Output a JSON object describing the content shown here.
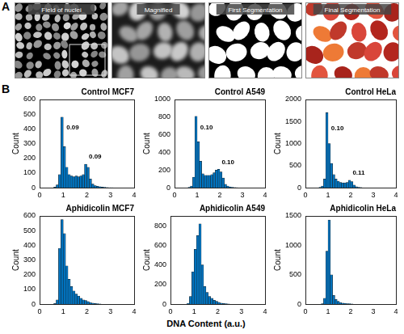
{
  "panel_a": {
    "label": "A",
    "images": [
      "Field of nuclei",
      "Magnified",
      "First Segmentation",
      "Final Segmentation"
    ]
  },
  "panel_b_label": "B",
  "xlabel": "DNA Content (a.u.)",
  "chart_data": [
    {
      "type": "histogram",
      "title": "Control MCF7",
      "ylabel": "Count",
      "color": "#0072bd",
      "grid": false,
      "bins": [
        0,
        0.1,
        0.2,
        0.3,
        0.4,
        0.5,
        0.6,
        0.7,
        0.8,
        0.9,
        1.0,
        1.1,
        1.2,
        1.3,
        1.4,
        1.5,
        1.6,
        1.7,
        1.8,
        1.9,
        2.0,
        2.1,
        2.2,
        2.3,
        2.4,
        2.5,
        2.6,
        2.7,
        2.8,
        2.9,
        3.0,
        3.1,
        3.2,
        3.3,
        3.4,
        3.5,
        3.6,
        3.7,
        3.8,
        3.9,
        4.0
      ],
      "values": [
        0,
        0,
        0,
        0,
        0,
        0,
        5,
        20,
        90,
        480,
        280,
        140,
        90,
        80,
        75,
        80,
        75,
        80,
        90,
        160,
        140,
        60,
        25,
        15,
        10,
        8,
        5,
        3,
        2,
        1,
        1,
        0,
        0,
        0,
        0,
        0,
        0,
        0,
        0,
        0
      ],
      "xlim": [
        0,
        4
      ],
      "xticks": [
        0,
        1,
        2,
        3,
        4
      ],
      "ylim": [
        0,
        600
      ],
      "yticks": [
        0,
        100,
        200,
        300,
        400,
        500,
        600
      ],
      "annotations": [
        {
          "text": "0.09",
          "x": 1.1,
          "y": 410
        },
        {
          "text": "0.09",
          "x": 2.05,
          "y": 210
        }
      ]
    },
    {
      "type": "histogram",
      "title": "Control A549",
      "ylabel": "Count",
      "color": "#0072bd",
      "grid": false,
      "bins": [
        0,
        0.1,
        0.2,
        0.3,
        0.4,
        0.5,
        0.6,
        0.7,
        0.8,
        0.9,
        1.0,
        1.1,
        1.2,
        1.3,
        1.4,
        1.5,
        1.6,
        1.7,
        1.8,
        1.9,
        2.0,
        2.1,
        2.2,
        2.3,
        2.4,
        2.5,
        2.6,
        2.7,
        2.8,
        2.9,
        3.0,
        3.1,
        3.2,
        3.3,
        3.4,
        3.5,
        3.6,
        3.7,
        3.8,
        3.9,
        4.0
      ],
      "values": [
        0,
        0,
        0,
        0,
        0,
        0,
        5,
        20,
        120,
        810,
        520,
        300,
        160,
        140,
        140,
        140,
        150,
        170,
        200,
        210,
        180,
        110,
        40,
        20,
        10,
        5,
        3,
        2,
        0,
        0,
        0,
        0,
        0,
        0,
        0,
        0,
        0,
        0,
        0,
        0
      ],
      "xlim": [
        0,
        4
      ],
      "xticks": [
        0,
        1,
        2,
        3,
        4
      ],
      "ylim": [
        0,
        1000
      ],
      "yticks": [
        0,
        200,
        400,
        600,
        800,
        1000
      ],
      "annotations": [
        {
          "text": "0.10",
          "x": 1.1,
          "y": 680
        },
        {
          "text": "0.10",
          "x": 2.05,
          "y": 290
        }
      ]
    },
    {
      "type": "histogram",
      "title": "Control HeLa",
      "ylabel": "Count",
      "color": "#0072bd",
      "grid": false,
      "bins": [
        0,
        0.1,
        0.2,
        0.3,
        0.4,
        0.5,
        0.6,
        0.7,
        0.8,
        0.9,
        1.0,
        1.1,
        1.2,
        1.3,
        1.4,
        1.5,
        1.6,
        1.7,
        1.8,
        1.9,
        2.0,
        2.1,
        2.2,
        2.3,
        2.4,
        2.5,
        2.6,
        2.7,
        2.8,
        2.9,
        3.0,
        3.1,
        3.2,
        3.3,
        3.4,
        3.5,
        3.6,
        3.7,
        3.8,
        3.9,
        4.0
      ],
      "values": [
        0,
        0,
        0,
        0,
        0,
        0,
        10,
        40,
        200,
        1700,
        1000,
        550,
        300,
        200,
        150,
        120,
        110,
        110,
        120,
        170,
        140,
        60,
        25,
        10,
        5,
        0,
        0,
        0,
        0,
        0,
        0,
        0,
        0,
        0,
        0,
        0,
        0,
        0,
        0,
        0
      ],
      "xlim": [
        0,
        4
      ],
      "xticks": [
        0,
        1,
        2,
        3,
        4
      ],
      "ylim": [
        0,
        2000
      ],
      "yticks": [
        0,
        500,
        1000,
        1500,
        2000
      ],
      "annotations": [
        {
          "text": "0.10",
          "x": 1.1,
          "y": 1350
        },
        {
          "text": "0.11",
          "x": 2.05,
          "y": 340
        }
      ]
    },
    {
      "type": "histogram",
      "title": "Aphidicolin MCF7",
      "ylabel": "Count",
      "color": "#0072bd",
      "grid": false,
      "bins": [
        0,
        0.1,
        0.2,
        0.3,
        0.4,
        0.5,
        0.6,
        0.7,
        0.8,
        0.9,
        1.0,
        1.1,
        1.2,
        1.3,
        1.4,
        1.5,
        1.6,
        1.7,
        1.8,
        1.9,
        2.0,
        2.1,
        2.2,
        2.3,
        2.4,
        2.5,
        2.6,
        2.7,
        2.8,
        2.9,
        3.0,
        3.1,
        3.2,
        3.3,
        3.4,
        3.5,
        3.6,
        3.7,
        3.8,
        3.9,
        4.0
      ],
      "values": [
        0,
        0,
        0,
        0,
        0,
        0,
        5,
        30,
        380,
        575,
        480,
        260,
        170,
        120,
        90,
        70,
        55,
        40,
        30,
        25,
        18,
        12,
        8,
        5,
        3,
        2,
        0,
        0,
        0,
        0,
        0,
        0,
        0,
        0,
        0,
        0,
        0,
        0,
        0,
        0
      ],
      "xlim": [
        0,
        4
      ],
      "xticks": [
        0,
        1,
        2,
        3,
        4
      ],
      "ylim": [
        0,
        600
      ],
      "yticks": [
        0,
        100,
        200,
        300,
        400,
        500,
        600
      ]
    },
    {
      "type": "histogram",
      "title": "Aphidicolin A549",
      "ylabel": "Count",
      "color": "#0072bd",
      "grid": false,
      "bins": [
        0,
        0.1,
        0.2,
        0.3,
        0.4,
        0.5,
        0.6,
        0.7,
        0.8,
        0.9,
        1.0,
        1.1,
        1.2,
        1.3,
        1.4,
        1.5,
        1.6,
        1.7,
        1.8,
        1.9,
        2.0,
        2.1,
        2.2,
        2.3,
        2.4,
        2.5,
        2.6,
        2.7,
        2.8,
        2.9,
        3.0,
        3.1,
        3.2,
        3.3,
        3.4,
        3.5,
        3.6,
        3.7,
        3.8,
        3.9,
        4.0
      ],
      "values": [
        0,
        0,
        0,
        0,
        0,
        0,
        0,
        10,
        80,
        330,
        560,
        700,
        820,
        400,
        180,
        120,
        80,
        60,
        40,
        30,
        20,
        12,
        8,
        5,
        3,
        0,
        0,
        0,
        0,
        0,
        0,
        0,
        0,
        0,
        0,
        0,
        0,
        0,
        0,
        0
      ],
      "xlim": [
        0,
        4
      ],
      "xticks": [
        0,
        1,
        2,
        3,
        4
      ],
      "ylim": [
        0,
        900
      ],
      "yticks": [
        0,
        200,
        400,
        600,
        800
      ]
    },
    {
      "type": "histogram",
      "title": "Aphidicolin HeLa",
      "ylabel": "Count",
      "color": "#0072bd",
      "grid": false,
      "bins": [
        0,
        0.1,
        0.2,
        0.3,
        0.4,
        0.5,
        0.6,
        0.7,
        0.8,
        0.9,
        1.0,
        1.1,
        1.2,
        1.3,
        1.4,
        1.5,
        1.6,
        1.7,
        1.8,
        1.9,
        2.0,
        2.1,
        2.2,
        2.3,
        2.4,
        2.5,
        2.6,
        2.7,
        2.8,
        2.9,
        3.0,
        3.1,
        3.2,
        3.3,
        3.4,
        3.5,
        3.6,
        3.7,
        3.8,
        3.9,
        4.0
      ],
      "values": [
        0,
        0,
        0,
        0,
        0,
        0,
        0,
        10,
        100,
        900,
        1430,
        500,
        150,
        80,
        50,
        30,
        20,
        15,
        10,
        8,
        5,
        0,
        0,
        0,
        0,
        0,
        0,
        0,
        0,
        0,
        0,
        0,
        0,
        0,
        0,
        0,
        0,
        0,
        0,
        0
      ],
      "xlim": [
        0,
        4
      ],
      "xticks": [
        0,
        1,
        2,
        3,
        4
      ],
      "ylim": [
        0,
        1500
      ],
      "yticks": [
        0,
        500,
        1000,
        1500
      ]
    }
  ]
}
